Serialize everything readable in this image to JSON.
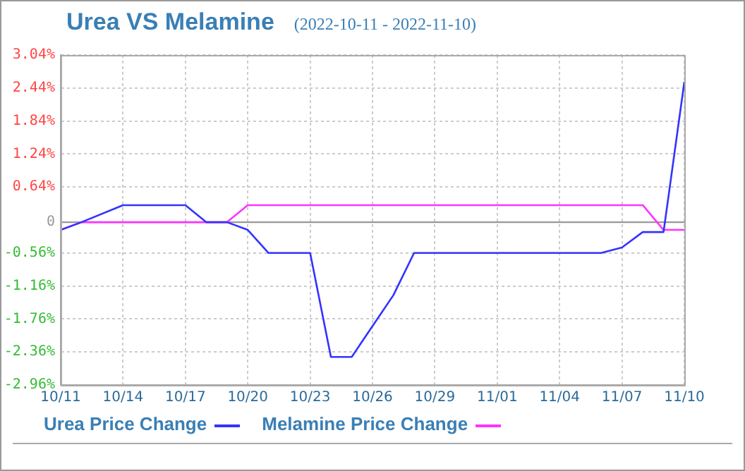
{
  "chart_data": {
    "type": "line",
    "title": "Urea VS Melamine",
    "subtitle": "(2022-10-11 - 2022-11-10)",
    "series": [
      {
        "name": "Urea Price Change",
        "color": "#3333ff",
        "x": [
          "2022-10-11",
          "2022-10-12",
          "2022-10-14",
          "2022-10-17",
          "2022-10-18",
          "2022-10-19",
          "2022-10-20",
          "2022-10-21",
          "2022-10-23",
          "2022-10-24",
          "2022-10-25",
          "2022-10-26",
          "2022-10-27",
          "2022-10-28",
          "2022-11-06",
          "2022-11-07",
          "2022-11-08",
          "2022-11-09",
          "2022-11-10"
        ],
        "values": [
          -0.14,
          0,
          0.31,
          0.31,
          0,
          0,
          -0.14,
          -0.56,
          -0.56,
          -2.45,
          -2.45,
          -1.89,
          -1.33,
          -0.56,
          -0.56,
          -0.46,
          -0.18,
          -0.18,
          2.55
        ]
      },
      {
        "name": "Melamine Price Change",
        "color": "#ff33ff",
        "x": [
          "2022-10-11",
          "2022-10-12",
          "2022-10-19",
          "2022-10-20",
          "2022-11-08",
          "2022-11-09",
          "2022-11-10"
        ],
        "values": [
          -0.14,
          0,
          0,
          0.31,
          0.31,
          -0.14,
          -0.14
        ]
      }
    ],
    "xlim": [
      "2022-10-11",
      "2022-11-10"
    ],
    "xticks": [
      {
        "value": "2022-10-11",
        "label": "10/11"
      },
      {
        "value": "2022-10-14",
        "label": "10/14"
      },
      {
        "value": "2022-10-17",
        "label": "10/17"
      },
      {
        "value": "2022-10-20",
        "label": "10/20"
      },
      {
        "value": "2022-10-23",
        "label": "10/23"
      },
      {
        "value": "2022-10-26",
        "label": "10/26"
      },
      {
        "value": "2022-10-29",
        "label": "10/29"
      },
      {
        "value": "2022-11-01",
        "label": "11/01"
      },
      {
        "value": "2022-11-04",
        "label": "11/04"
      },
      {
        "value": "2022-11-07",
        "label": "11/07"
      },
      {
        "value": "2022-11-10",
        "label": "11/10"
      }
    ],
    "ylim": [
      -2.96,
      3.04
    ],
    "yticks": [
      {
        "value": 3.04,
        "label": "3.04%"
      },
      {
        "value": 2.44,
        "label": "2.44%"
      },
      {
        "value": 1.84,
        "label": "1.84%"
      },
      {
        "value": 1.24,
        "label": "1.24%"
      },
      {
        "value": 0.64,
        "label": "0.64%"
      },
      0,
      {
        "value": -0.56,
        "label": "-0.56%"
      },
      {
        "value": -1.16,
        "label": "-1.16%"
      },
      {
        "value": -1.76,
        "label": "-1.76%"
      },
      {
        "value": -2.36,
        "label": "-2.36%"
      },
      {
        "value": -2.96,
        "label": "-2.96%"
      }
    ],
    "ref_lines": [
      {
        "axis": "y",
        "value": 0,
        "color": "#999999"
      }
    ],
    "grid": true,
    "legend": "bottom",
    "marker": "none",
    "line_style": "solid"
  }
}
